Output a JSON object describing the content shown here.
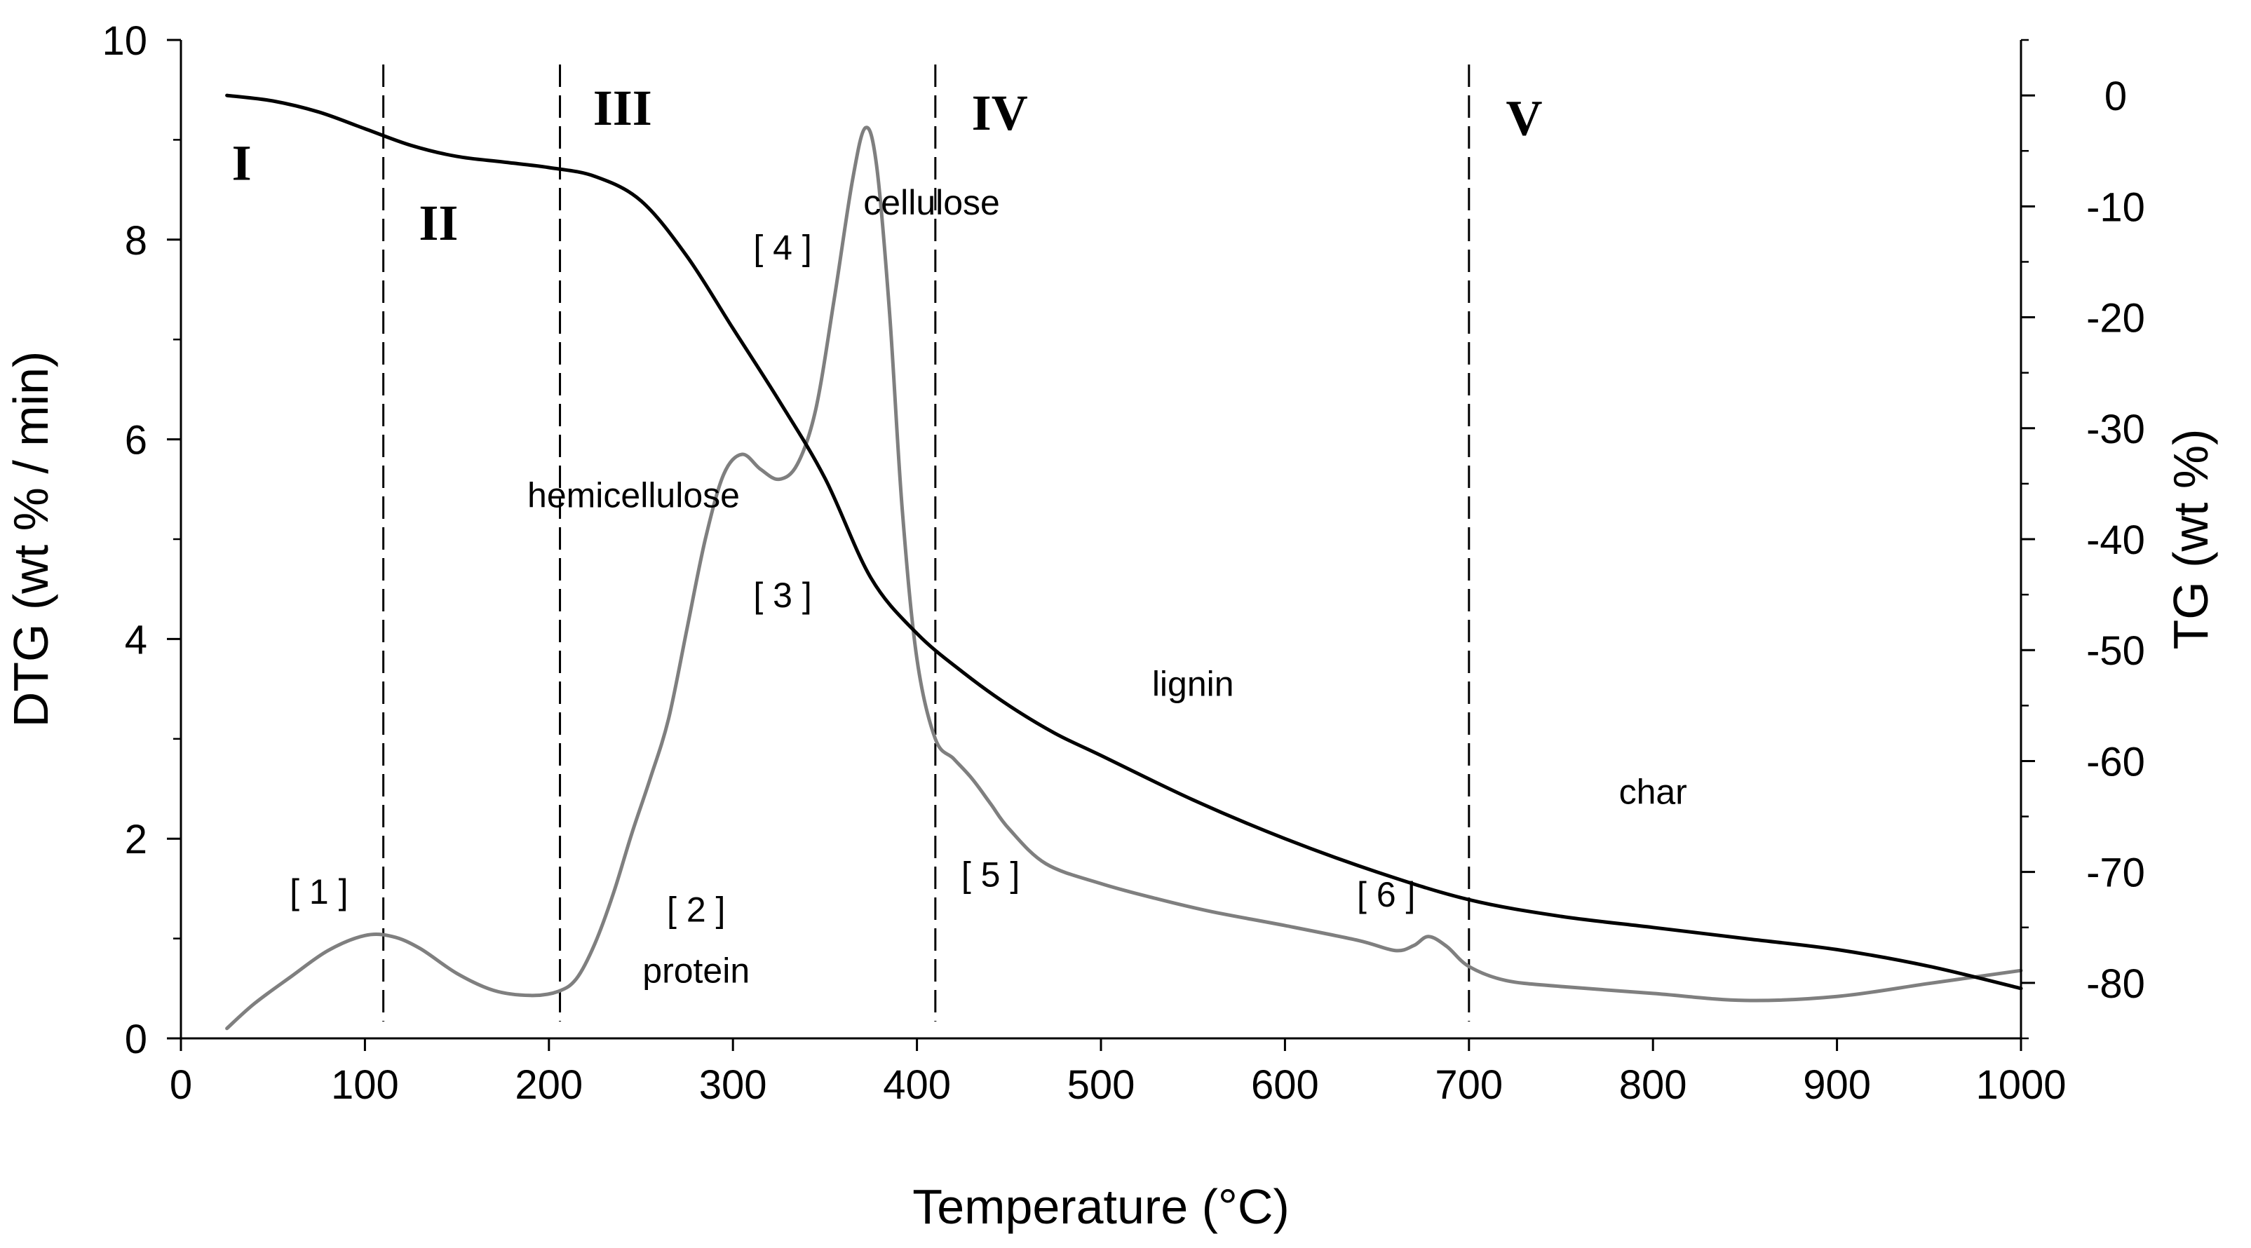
{
  "chart_data": {
    "type": "line",
    "title": "",
    "xlabel": "Temperature (°C)",
    "ylabel": "DTG (wt % / min)",
    "y2label": "TG (wt %)",
    "xlim": [
      0,
      1000
    ],
    "ylim": [
      0,
      10
    ],
    "y2lim": [
      -85,
      5
    ],
    "x_ticks": [
      0,
      100,
      200,
      300,
      400,
      500,
      600,
      700,
      800,
      900,
      1000
    ],
    "y_ticks": [
      0,
      2,
      4,
      6,
      8,
      10
    ],
    "y2_ticks": [
      0,
      -10,
      -20,
      -30,
      -40,
      -50,
      -60,
      -70,
      -80
    ],
    "grid": false,
    "series": [
      {
        "name": "DTG",
        "axis": "left",
        "color": "#7f7f7f",
        "x": [
          25,
          40,
          60,
          80,
          100,
          115,
          130,
          150,
          170,
          190,
          205,
          215,
          225,
          235,
          245,
          255,
          265,
          275,
          285,
          295,
          305,
          315,
          325,
          335,
          345,
          355,
          365,
          372,
          378,
          385,
          392,
          400,
          410,
          420,
          430,
          440,
          450,
          470,
          500,
          530,
          560,
          600,
          640,
          660,
          670,
          678,
          688,
          700,
          720,
          750,
          800,
          850,
          900,
          950,
          1000
        ],
        "y": [
          0.1,
          0.35,
          0.62,
          0.88,
          1.03,
          1.02,
          0.9,
          0.65,
          0.48,
          0.43,
          0.47,
          0.6,
          0.95,
          1.45,
          2.05,
          2.6,
          3.2,
          4.1,
          5.0,
          5.65,
          5.85,
          5.7,
          5.6,
          5.75,
          6.3,
          7.4,
          8.6,
          9.12,
          8.75,
          7.3,
          5.3,
          3.8,
          3.0,
          2.8,
          2.6,
          2.35,
          2.1,
          1.75,
          1.55,
          1.4,
          1.27,
          1.13,
          0.98,
          0.88,
          0.93,
          1.02,
          0.92,
          0.72,
          0.58,
          0.52,
          0.45,
          0.38,
          0.42,
          0.55,
          0.68
        ]
      },
      {
        "name": "TG",
        "axis": "right",
        "color": "#000000",
        "x": [
          25,
          50,
          75,
          100,
          125,
          150,
          175,
          200,
          225,
          250,
          275,
          300,
          325,
          350,
          375,
          400,
          425,
          450,
          475,
          500,
          550,
          600,
          650,
          700,
          750,
          800,
          850,
          900,
          950,
          1000
        ],
        "y": [
          0,
          -0.5,
          -1.5,
          -3.0,
          -4.5,
          -5.5,
          -6.0,
          -6.5,
          -7.3,
          -9.5,
          -14.5,
          -21.0,
          -27.5,
          -34.5,
          -43.5,
          -48.5,
          -52.0,
          -55.0,
          -57.5,
          -59.5,
          -63.5,
          -67.0,
          -70.0,
          -72.5,
          -74.0,
          -75.0,
          -76.0,
          -77.0,
          -78.5,
          -80.5
        ]
      }
    ],
    "stages": [
      {
        "label": "I",
        "x": 33,
        "y": 8.6
      },
      {
        "label": "II",
        "x": 140,
        "y": 8.0
      },
      {
        "label": "III",
        "x": 240,
        "y": 9.15
      },
      {
        "label": "IV",
        "x": 445,
        "y": 9.1
      },
      {
        "label": "V",
        "x": 730,
        "y": 9.05
      }
    ],
    "boundaries": [
      110,
      206,
      410,
      700
    ],
    "annotations": [
      {
        "text": "[ 1 ]",
        "x": 75,
        "y": 1.35
      },
      {
        "text": "[ 2 ]",
        "x": 280,
        "y": 1.17
      },
      {
        "text": "protein",
        "x": 280,
        "y": 0.56
      },
      {
        "text": "[ 3 ]",
        "x": 327,
        "y": 4.32
      },
      {
        "text": "hemicellulose",
        "x": 246,
        "y": 5.32
      },
      {
        "text": "[ 4 ]",
        "x": 327,
        "y": 7.8
      },
      {
        "text": "cellulose",
        "x": 408,
        "y": 8.25
      },
      {
        "text": "[ 5 ]",
        "x": 440,
        "y": 1.52
      },
      {
        "text": "lignin",
        "x": 550,
        "y": 3.43
      },
      {
        "text": "[ 6 ]",
        "x": 655,
        "y": 1.32
      },
      {
        "text": "char",
        "x": 800,
        "y": 2.35
      }
    ]
  }
}
